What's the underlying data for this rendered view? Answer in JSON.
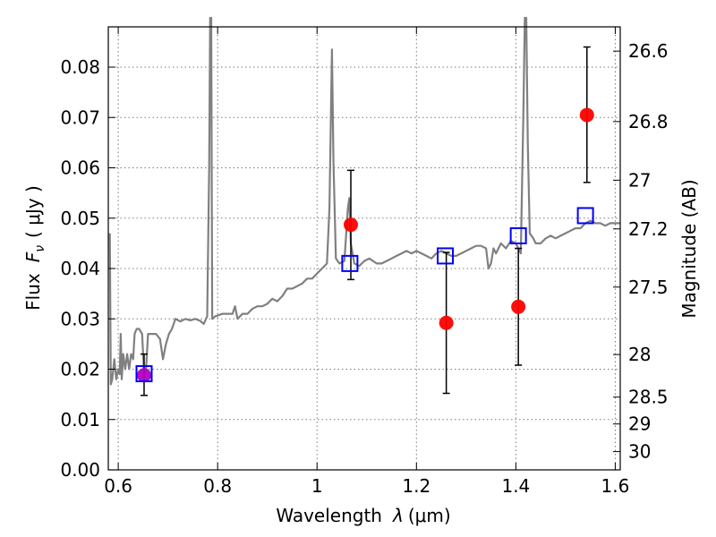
{
  "chart_data": {
    "type": "scatter",
    "title": "",
    "xlabel_prefix": "Wavelength",
    "xlabel_symbol": "λ",
    "xlabel_unit": "(μm)",
    "ylabel_prefix": "Flux",
    "ylabel_symbol": "F",
    "ylabel_subscript": "ν",
    "ylabel_unit": "( μJy )",
    "y2label": "Magnitude (AB)",
    "xlim": [
      0.58,
      1.61
    ],
    "ylim": [
      0.0,
      0.088
    ],
    "grid": true,
    "x_ticks": [
      {
        "value": 0.6,
        "label": "0.6"
      },
      {
        "value": 0.8,
        "label": "0.8"
      },
      {
        "value": 1.0,
        "label": "1"
      },
      {
        "value": 1.2,
        "label": "1.2"
      },
      {
        "value": 1.4,
        "label": "1.4"
      },
      {
        "value": 1.6,
        "label": "1.6"
      }
    ],
    "y_ticks": [
      {
        "value": 0.0,
        "label": "0.00"
      },
      {
        "value": 0.01,
        "label": "0.01"
      },
      {
        "value": 0.02,
        "label": "0.02"
      },
      {
        "value": 0.03,
        "label": "0.03"
      },
      {
        "value": 0.04,
        "label": "0.04"
      },
      {
        "value": 0.05,
        "label": "0.05"
      },
      {
        "value": 0.06,
        "label": "0.06"
      },
      {
        "value": 0.07,
        "label": "0.07"
      },
      {
        "value": 0.08,
        "label": "0.08"
      }
    ],
    "y2_ticks": [
      {
        "value": 26.6,
        "label": "26.6"
      },
      {
        "value": 26.8,
        "label": "26.8"
      },
      {
        "value": 27.0,
        "label": "27"
      },
      {
        "value": 27.2,
        "label": "27.2"
      },
      {
        "value": 27.5,
        "label": "27.5"
      },
      {
        "value": 28.0,
        "label": "28"
      },
      {
        "value": 28.5,
        "label": "28.5"
      },
      {
        "value": 29.0,
        "label": "29"
      },
      {
        "value": 30.0,
        "label": "30"
      }
    ],
    "series": [
      {
        "kind": "spectrum",
        "color": "#808080",
        "points": [
          [
            0.583,
            0.047
          ],
          [
            0.585,
            0.017
          ],
          [
            0.588,
            0.018
          ],
          [
            0.592,
            0.022
          ],
          [
            0.596,
            0.018
          ],
          [
            0.6,
            0.02
          ],
          [
            0.603,
            0.019
          ],
          [
            0.605,
            0.027
          ],
          [
            0.607,
            0.018
          ],
          [
            0.61,
            0.023
          ],
          [
            0.614,
            0.02
          ],
          [
            0.618,
            0.023
          ],
          [
            0.622,
            0.02
          ],
          [
            0.626,
            0.023
          ],
          [
            0.63,
            0.022
          ],
          [
            0.633,
            0.027
          ],
          [
            0.637,
            0.028
          ],
          [
            0.642,
            0.028
          ],
          [
            0.648,
            0.027
          ],
          [
            0.652,
            0.019
          ],
          [
            0.656,
            0.02
          ],
          [
            0.66,
            0.027
          ],
          [
            0.668,
            0.027
          ],
          [
            0.676,
            0.027
          ],
          [
            0.684,
            0.026
          ],
          [
            0.69,
            0.022
          ],
          [
            0.696,
            0.025
          ],
          [
            0.702,
            0.027
          ],
          [
            0.708,
            0.028
          ],
          [
            0.715,
            0.03
          ],
          [
            0.725,
            0.0295
          ],
          [
            0.735,
            0.03
          ],
          [
            0.745,
            0.0297
          ],
          [
            0.755,
            0.03
          ],
          [
            0.765,
            0.0296
          ],
          [
            0.772,
            0.029
          ],
          [
            0.779,
            0.0305
          ],
          [
            0.783,
            0.06
          ],
          [
            0.785,
            0.09
          ],
          [
            0.787,
            0.09
          ],
          [
            0.789,
            0.03
          ],
          [
            0.795,
            0.0305
          ],
          [
            0.81,
            0.031
          ],
          [
            0.82,
            0.031
          ],
          [
            0.83,
            0.031
          ],
          [
            0.835,
            0.0325
          ],
          [
            0.84,
            0.03
          ],
          [
            0.85,
            0.031
          ],
          [
            0.86,
            0.031
          ],
          [
            0.87,
            0.032
          ],
          [
            0.88,
            0.0325
          ],
          [
            0.89,
            0.0325
          ],
          [
            0.9,
            0.033
          ],
          [
            0.91,
            0.034
          ],
          [
            0.92,
            0.0335
          ],
          [
            0.93,
            0.0345
          ],
          [
            0.94,
            0.036
          ],
          [
            0.95,
            0.036
          ],
          [
            0.96,
            0.0365
          ],
          [
            0.97,
            0.037
          ],
          [
            0.98,
            0.038
          ],
          [
            0.99,
            0.038
          ],
          [
            1.0,
            0.039
          ],
          [
            1.01,
            0.04
          ],
          [
            1.02,
            0.041
          ],
          [
            1.025,
            0.052
          ],
          [
            1.03,
            0.0835
          ],
          [
            1.033,
            0.061
          ],
          [
            1.038,
            0.042
          ],
          [
            1.045,
            0.041
          ],
          [
            1.055,
            0.0415
          ],
          [
            1.062,
            0.052
          ],
          [
            1.065,
            0.054
          ],
          [
            1.068,
            0.045
          ],
          [
            1.075,
            0.041
          ],
          [
            1.085,
            0.0405
          ],
          [
            1.095,
            0.0415
          ],
          [
            1.105,
            0.042
          ],
          [
            1.12,
            0.041
          ],
          [
            1.13,
            0.041
          ],
          [
            1.14,
            0.0415
          ],
          [
            1.15,
            0.042
          ],
          [
            1.16,
            0.0425
          ],
          [
            1.17,
            0.043
          ],
          [
            1.18,
            0.0435
          ],
          [
            1.19,
            0.043
          ],
          [
            1.2,
            0.0435
          ],
          [
            1.21,
            0.043
          ],
          [
            1.22,
            0.0425
          ],
          [
            1.23,
            0.042
          ],
          [
            1.24,
            0.043
          ],
          [
            1.25,
            0.0435
          ],
          [
            1.26,
            0.043
          ],
          [
            1.27,
            0.0425
          ],
          [
            1.28,
            0.0425
          ],
          [
            1.29,
            0.043
          ],
          [
            1.3,
            0.0435
          ],
          [
            1.31,
            0.044
          ],
          [
            1.32,
            0.0445
          ],
          [
            1.33,
            0.0445
          ],
          [
            1.34,
            0.044
          ],
          [
            1.345,
            0.04
          ],
          [
            1.35,
            0.041
          ],
          [
            1.355,
            0.044
          ],
          [
            1.36,
            0.043
          ],
          [
            1.37,
            0.045
          ],
          [
            1.38,
            0.044
          ],
          [
            1.39,
            0.0455
          ],
          [
            1.4,
            0.045
          ],
          [
            1.41,
            0.043
          ],
          [
            1.415,
            0.07
          ],
          [
            1.418,
            0.09
          ],
          [
            1.421,
            0.09
          ],
          [
            1.424,
            0.065
          ],
          [
            1.428,
            0.047
          ],
          [
            1.435,
            0.046
          ],
          [
            1.44,
            0.045
          ],
          [
            1.45,
            0.045
          ],
          [
            1.46,
            0.046
          ],
          [
            1.47,
            0.0465
          ],
          [
            1.48,
            0.046
          ],
          [
            1.49,
            0.0465
          ],
          [
            1.5,
            0.047
          ],
          [
            1.51,
            0.0475
          ],
          [
            1.52,
            0.048
          ],
          [
            1.53,
            0.048
          ],
          [
            1.54,
            0.049
          ],
          [
            1.55,
            0.0495
          ],
          [
            1.56,
            0.049
          ],
          [
            1.57,
            0.049
          ],
          [
            1.58,
            0.0485
          ],
          [
            1.59,
            0.049
          ],
          [
            1.6,
            0.049
          ],
          [
            1.61,
            0.049
          ]
        ]
      },
      {
        "kind": "observed",
        "color": "#ff0000",
        "points": [
          {
            "x": 0.652,
            "y": 0.0188,
            "err_low": 0.0148,
            "err_high": 0.023
          },
          {
            "x": 1.068,
            "y": 0.0487,
            "err_low": 0.0378,
            "err_high": 0.0595
          },
          {
            "x": 1.26,
            "y": 0.0292,
            "err_low": 0.0152,
            "err_high": 0.0432
          },
          {
            "x": 1.405,
            "y": 0.0324,
            "err_low": 0.0208,
            "err_high": 0.044
          },
          {
            "x": 1.543,
            "y": 0.0705,
            "err_low": 0.0571,
            "err_high": 0.084
          }
        ]
      },
      {
        "kind": "model",
        "color": "#0000ff",
        "points": [
          {
            "x": 0.652,
            "y": 0.0191
          },
          {
            "x": 1.066,
            "y": 0.041
          },
          {
            "x": 1.258,
            "y": 0.0425
          },
          {
            "x": 1.405,
            "y": 0.0465
          },
          {
            "x": 1.54,
            "y": 0.0505
          }
        ]
      }
    ]
  }
}
